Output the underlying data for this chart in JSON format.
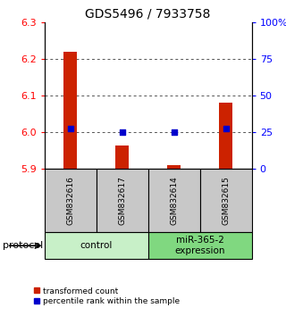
{
  "title": "GDS5496 / 7933758",
  "samples": [
    "GSM832616",
    "GSM832617",
    "GSM832614",
    "GSM832615"
  ],
  "red_values": [
    6.22,
    5.965,
    5.91,
    6.08
  ],
  "blue_values": [
    27.5,
    25.0,
    25.0,
    27.5
  ],
  "ylim_left": [
    5.9,
    6.3
  ],
  "ylim_right": [
    0,
    100
  ],
  "yticks_left": [
    5.9,
    6.0,
    6.1,
    6.2,
    6.3
  ],
  "yticks_right": [
    0,
    25,
    50,
    75,
    100
  ],
  "ytick_labels_right": [
    "0",
    "25",
    "50",
    "75",
    "100%"
  ],
  "groups": [
    {
      "label": "control",
      "samples": [
        0,
        1
      ],
      "color": "#c8f0c8"
    },
    {
      "label": "miR-365-2\nexpression",
      "samples": [
        2,
        3
      ],
      "color": "#80d880"
    }
  ],
  "red_color": "#cc2200",
  "blue_color": "#0000cc",
  "bar_baseline": 5.9,
  "dot_size": 22,
  "protocol_label": "protocol",
  "legend_red": "transformed count",
  "legend_blue": "percentile rank within the sample",
  "dotted_line_color": "#555555",
  "title_fontsize": 10,
  "tick_fontsize": 8,
  "sample_fontsize": 6.5,
  "proto_fontsize": 7.5,
  "legend_fontsize": 6.5,
  "bar_width": 0.25
}
